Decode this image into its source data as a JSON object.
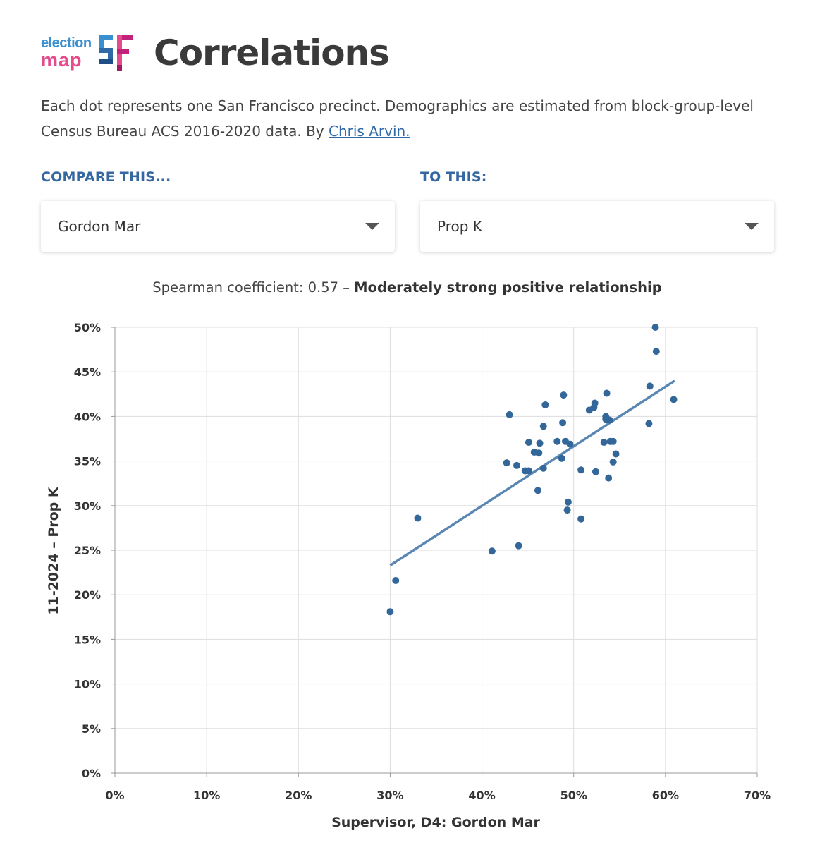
{
  "header": {
    "logo_election": "election",
    "logo_map": "map",
    "logo_sf": "SF",
    "title": "Correlations"
  },
  "intro": {
    "text": "Each dot represents one San Francisco precinct. Demographics are estimated from block-group-level Census Bureau ACS 2016-2020 data. By",
    "author_link": "Chris Arvin."
  },
  "controls": {
    "compare_label": "COMPARE THIS...",
    "compare_value": "Gordon Mar",
    "to_label": "TO THIS:",
    "to_value": "Prop K"
  },
  "coefficient": {
    "prefix": "Spearman coefficient: 0.57 – ",
    "strength": "Moderately strong positive relationship"
  },
  "colors": {
    "dot": "#336699",
    "trend": "#5a86b3",
    "grid": "#dddddd",
    "axis": "#999999"
  },
  "chart_data": {
    "type": "scatter",
    "xlabel": "Supervisor, D4: Gordon Mar",
    "ylabel": "11-2024 – Prop K",
    "xlim": [
      0,
      70
    ],
    "ylim": [
      0,
      50
    ],
    "xticks": [
      0,
      10,
      20,
      30,
      40,
      50,
      60,
      70
    ],
    "yticks": [
      0,
      5,
      10,
      15,
      20,
      25,
      30,
      35,
      40,
      45,
      50
    ],
    "tick_suffix": "%",
    "trendline": [
      [
        30.0,
        23.3
      ],
      [
        61.0,
        44.0
      ]
    ],
    "points": [
      [
        30.0,
        18.1
      ],
      [
        30.6,
        21.6
      ],
      [
        33.0,
        28.6
      ],
      [
        41.1,
        24.9
      ],
      [
        44.0,
        25.5
      ],
      [
        42.7,
        34.8
      ],
      [
        43.0,
        40.2
      ],
      [
        43.8,
        34.5
      ],
      [
        44.7,
        33.9
      ],
      [
        45.1,
        33.9
      ],
      [
        45.1,
        37.1
      ],
      [
        45.7,
        36.0
      ],
      [
        46.1,
        31.7
      ],
      [
        46.2,
        35.9
      ],
      [
        46.3,
        37.0
      ],
      [
        46.7,
        34.2
      ],
      [
        46.7,
        38.9
      ],
      [
        46.9,
        41.3
      ],
      [
        48.2,
        37.2
      ],
      [
        48.7,
        35.3
      ],
      [
        48.8,
        39.3
      ],
      [
        48.9,
        42.4
      ],
      [
        49.1,
        37.2
      ],
      [
        49.3,
        29.5
      ],
      [
        49.4,
        30.4
      ],
      [
        49.6,
        36.9
      ],
      [
        50.8,
        28.5
      ],
      [
        50.8,
        34.0
      ],
      [
        51.7,
        40.7
      ],
      [
        52.2,
        41.0
      ],
      [
        52.3,
        41.5
      ],
      [
        52.4,
        33.8
      ],
      [
        53.3,
        37.1
      ],
      [
        53.5,
        39.7
      ],
      [
        53.5,
        40.0
      ],
      [
        53.6,
        42.6
      ],
      [
        53.8,
        33.1
      ],
      [
        53.9,
        39.6
      ],
      [
        54.0,
        37.2
      ],
      [
        54.3,
        37.2
      ],
      [
        54.3,
        34.9
      ],
      [
        54.6,
        35.8
      ],
      [
        58.2,
        39.2
      ],
      [
        58.3,
        43.4
      ],
      [
        58.9,
        50.0
      ],
      [
        59.0,
        47.3
      ],
      [
        60.9,
        41.9
      ]
    ]
  }
}
